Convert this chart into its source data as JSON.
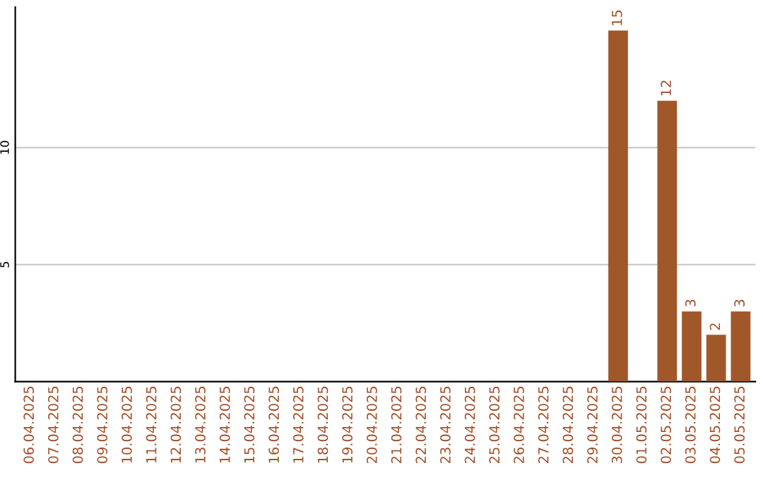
{
  "chart_data": {
    "type": "bar",
    "categories": [
      "06.04.2025",
      "07.04.2025",
      "08.04.2025",
      "09.04.2025",
      "10.04.2025",
      "11.04.2025",
      "12.04.2025",
      "13.04.2025",
      "14.04.2025",
      "15.04.2025",
      "16.04.2025",
      "17.04.2025",
      "18.04.2025",
      "19.04.2025",
      "20.04.2025",
      "21.04.2025",
      "22.04.2025",
      "23.04.2025",
      "24.04.2025",
      "25.04.2025",
      "26.04.2025",
      "27.04.2025",
      "28.04.2025",
      "29.04.2025",
      "30.04.2025",
      "01.05.2025",
      "02.05.2025",
      "03.05.2025",
      "04.05.2025",
      "05.05.2025"
    ],
    "values": [
      0,
      0,
      0,
      0,
      0,
      0,
      0,
      0,
      0,
      0,
      0,
      0,
      0,
      0,
      0,
      0,
      0,
      0,
      0,
      0,
      0,
      0,
      0,
      0,
      15,
      0,
      12,
      3,
      2,
      3
    ],
    "value_labels": [
      null,
      null,
      null,
      null,
      null,
      null,
      null,
      null,
      null,
      null,
      null,
      null,
      null,
      null,
      null,
      null,
      null,
      null,
      null,
      null,
      null,
      null,
      null,
      null,
      "15",
      null,
      "12",
      "3",
      "2",
      "3"
    ],
    "color": "#a0582a",
    "ylim": [
      0,
      16
    ],
    "yticks": [
      5,
      10
    ],
    "grid": "y"
  }
}
